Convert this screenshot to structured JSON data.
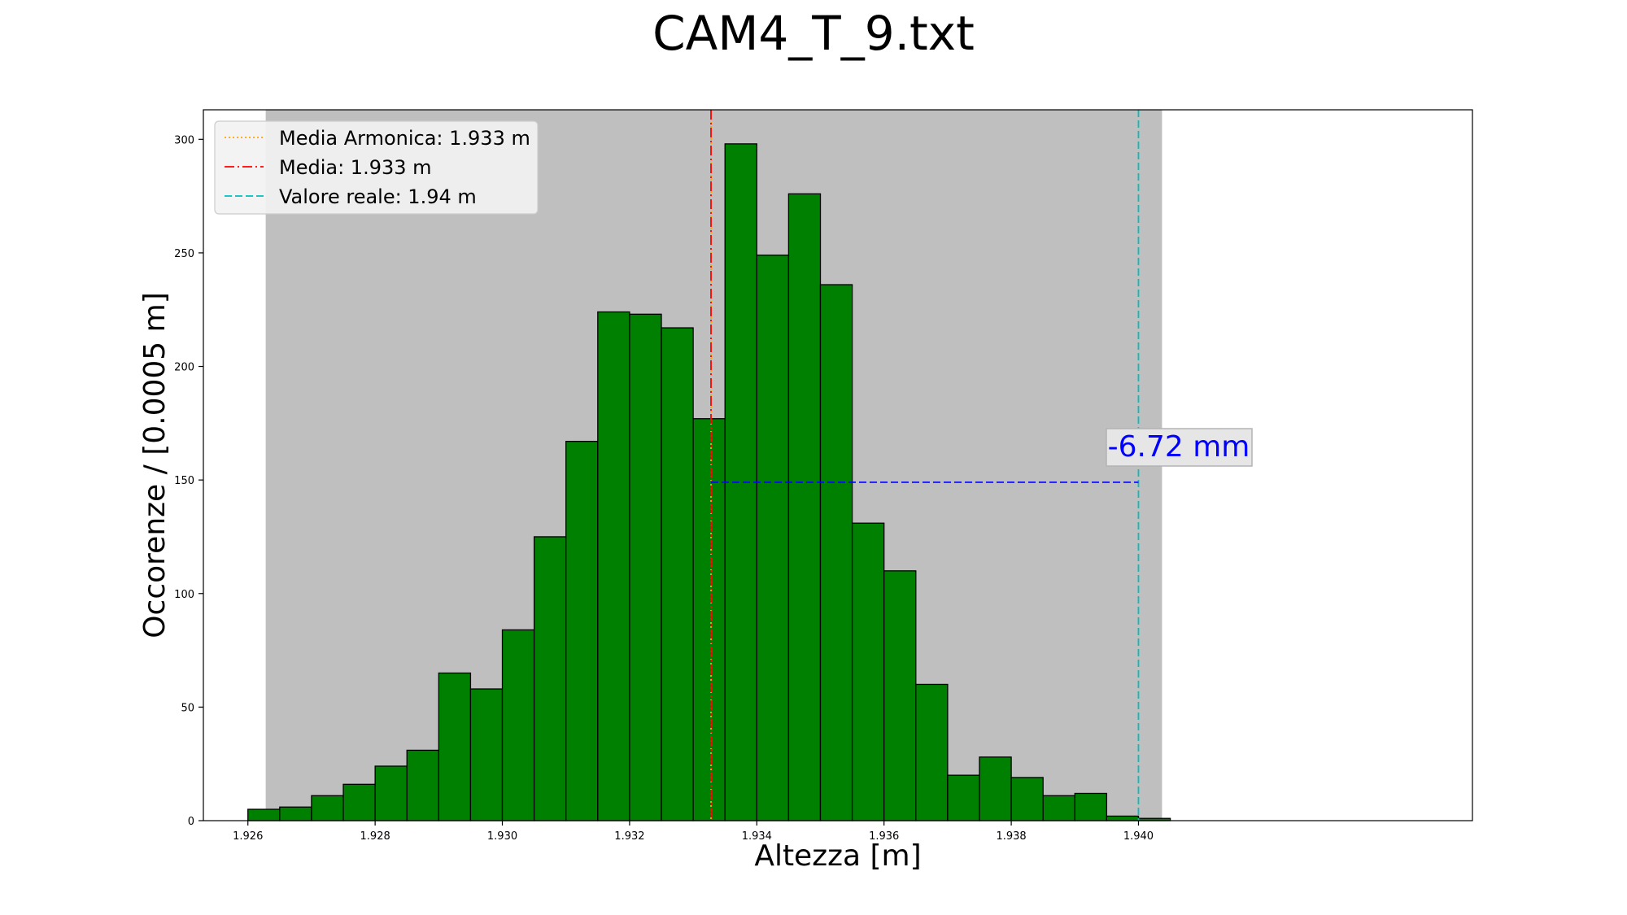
{
  "chart_data": {
    "type": "bar",
    "title": "CAM4_T_9.txt",
    "xlabel": "Altezza [m]",
    "ylabel": "Occorenze / [0.0005 m]",
    "xlim": [
      1.9253,
      1.94525
    ],
    "ylim": [
      0,
      313
    ],
    "xticks": [
      1.926,
      1.928,
      1.93,
      1.932,
      1.934,
      1.936,
      1.938,
      1.94
    ],
    "xtick_labels": [
      "1.926",
      "1.928",
      "1.930",
      "1.932",
      "1.934",
      "1.936",
      "1.938",
      "1.940"
    ],
    "yticks": [
      0,
      50,
      100,
      150,
      200,
      250,
      300
    ],
    "ytick_labels": [
      "0",
      "50",
      "100",
      "150",
      "200",
      "250",
      "300"
    ],
    "bin_start": 1.926,
    "bin_width": 0.0005,
    "values": [
      5,
      6,
      11,
      16,
      24,
      31,
      65,
      58,
      84,
      125,
      167,
      224,
      223,
      217,
      177,
      298,
      249,
      276,
      236,
      131,
      110,
      60,
      20,
      28,
      19,
      11,
      12,
      2,
      1
    ],
    "bar_color": "#008000",
    "bar_edge_color": "#000000",
    "shaded_region": {
      "x0": 1.92628,
      "x1": 1.94037,
      "color": "#bfbfbf"
    },
    "vlines": [
      {
        "name": "Media Armonica: 1.933 m",
        "x": 1.93328,
        "color": "#ffa500",
        "style": "dotted"
      },
      {
        "name": "Media: 1.933 m",
        "x": 1.93328,
        "color": "#ff0000",
        "style": "dashdot"
      },
      {
        "name": "Valore reale: 1.94 m",
        "x": 1.94,
        "color": "#00bfbf",
        "style": "dashed"
      }
    ],
    "difference_line": {
      "x0": 1.93328,
      "x1": 1.94,
      "y": 149,
      "color": "#0000ff",
      "style": "dashed"
    },
    "annotation": {
      "text": "-6.72 mm",
      "x": 1.93664,
      "y": 165,
      "color": "#0000ff"
    },
    "legend_position": "top-left",
    "grid": false
  }
}
